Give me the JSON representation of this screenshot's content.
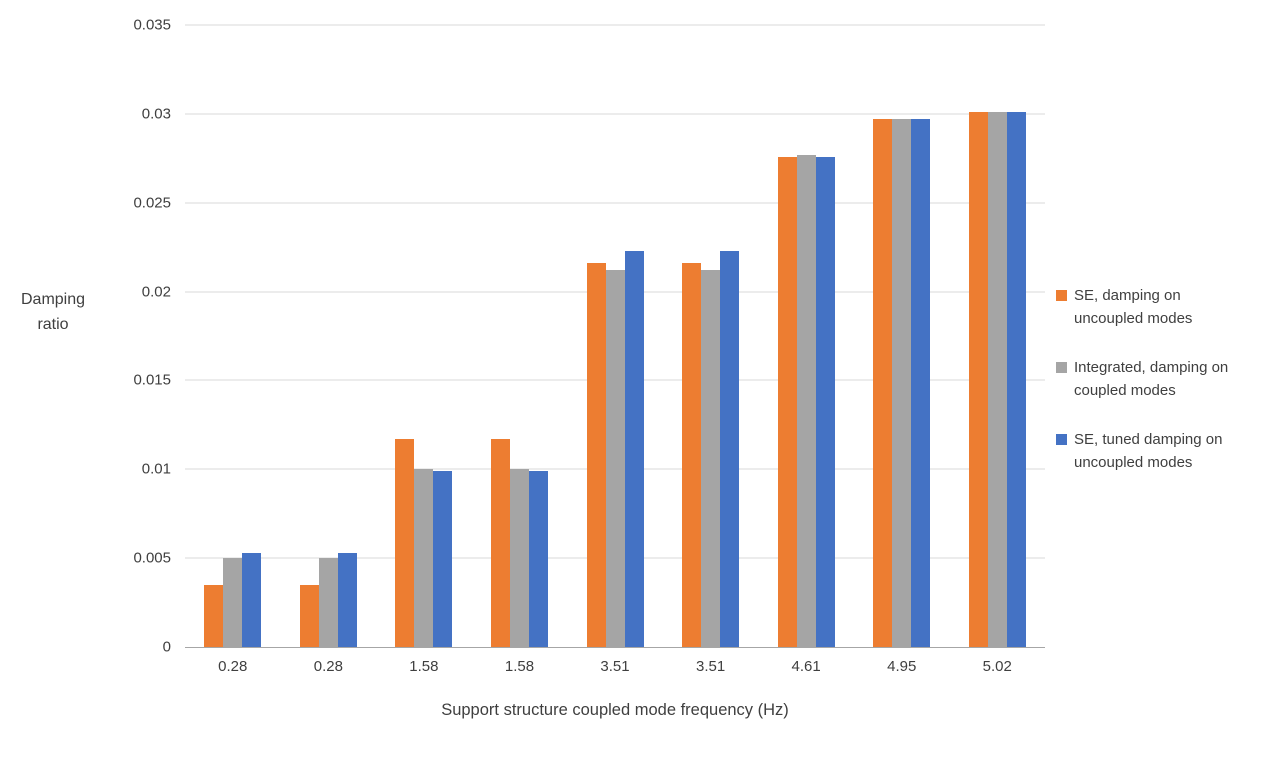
{
  "chart_data": {
    "type": "bar",
    "title": "",
    "xlabel": "Support structure coupled mode frequency (Hz)",
    "ylabel": "Damping ratio",
    "ylim": [
      0,
      0.035
    ],
    "yticks": [
      0,
      0.005,
      0.01,
      0.015,
      0.02,
      0.025,
      0.03,
      0.035
    ],
    "ytick_labels": [
      "0",
      "0.005",
      "0.01",
      "0.015",
      "0.02",
      "0.025",
      "0.03",
      "0.035"
    ],
    "categories": [
      "0.28",
      "0.28",
      "1.58",
      "1.58",
      "3.51",
      "3.51",
      "4.61",
      "4.95",
      "5.02"
    ],
    "series": [
      {
        "name": "SE, damping on uncoupled modes",
        "color": "#ED7D31",
        "values": [
          0.0035,
          0.0035,
          0.0117,
          0.0117,
          0.0216,
          0.0216,
          0.0276,
          0.0297,
          0.0301
        ]
      },
      {
        "name": "Integrated, damping on coupled modes",
        "color": "#A5A5A5",
        "values": [
          0.005,
          0.005,
          0.01,
          0.01,
          0.0212,
          0.0212,
          0.0277,
          0.0297,
          0.0301
        ]
      },
      {
        "name": "SE, tuned damping on uncoupled modes",
        "color": "#4472C4",
        "values": [
          0.0053,
          0.0053,
          0.0099,
          0.0099,
          0.0223,
          0.0223,
          0.0276,
          0.0297,
          0.0301
        ]
      }
    ],
    "legend_position": "right",
    "grid": true
  },
  "colors": {
    "gridline": "#D9D9D9",
    "axis_line": "#A6A6A6",
    "text": "#3F3F3F"
  }
}
